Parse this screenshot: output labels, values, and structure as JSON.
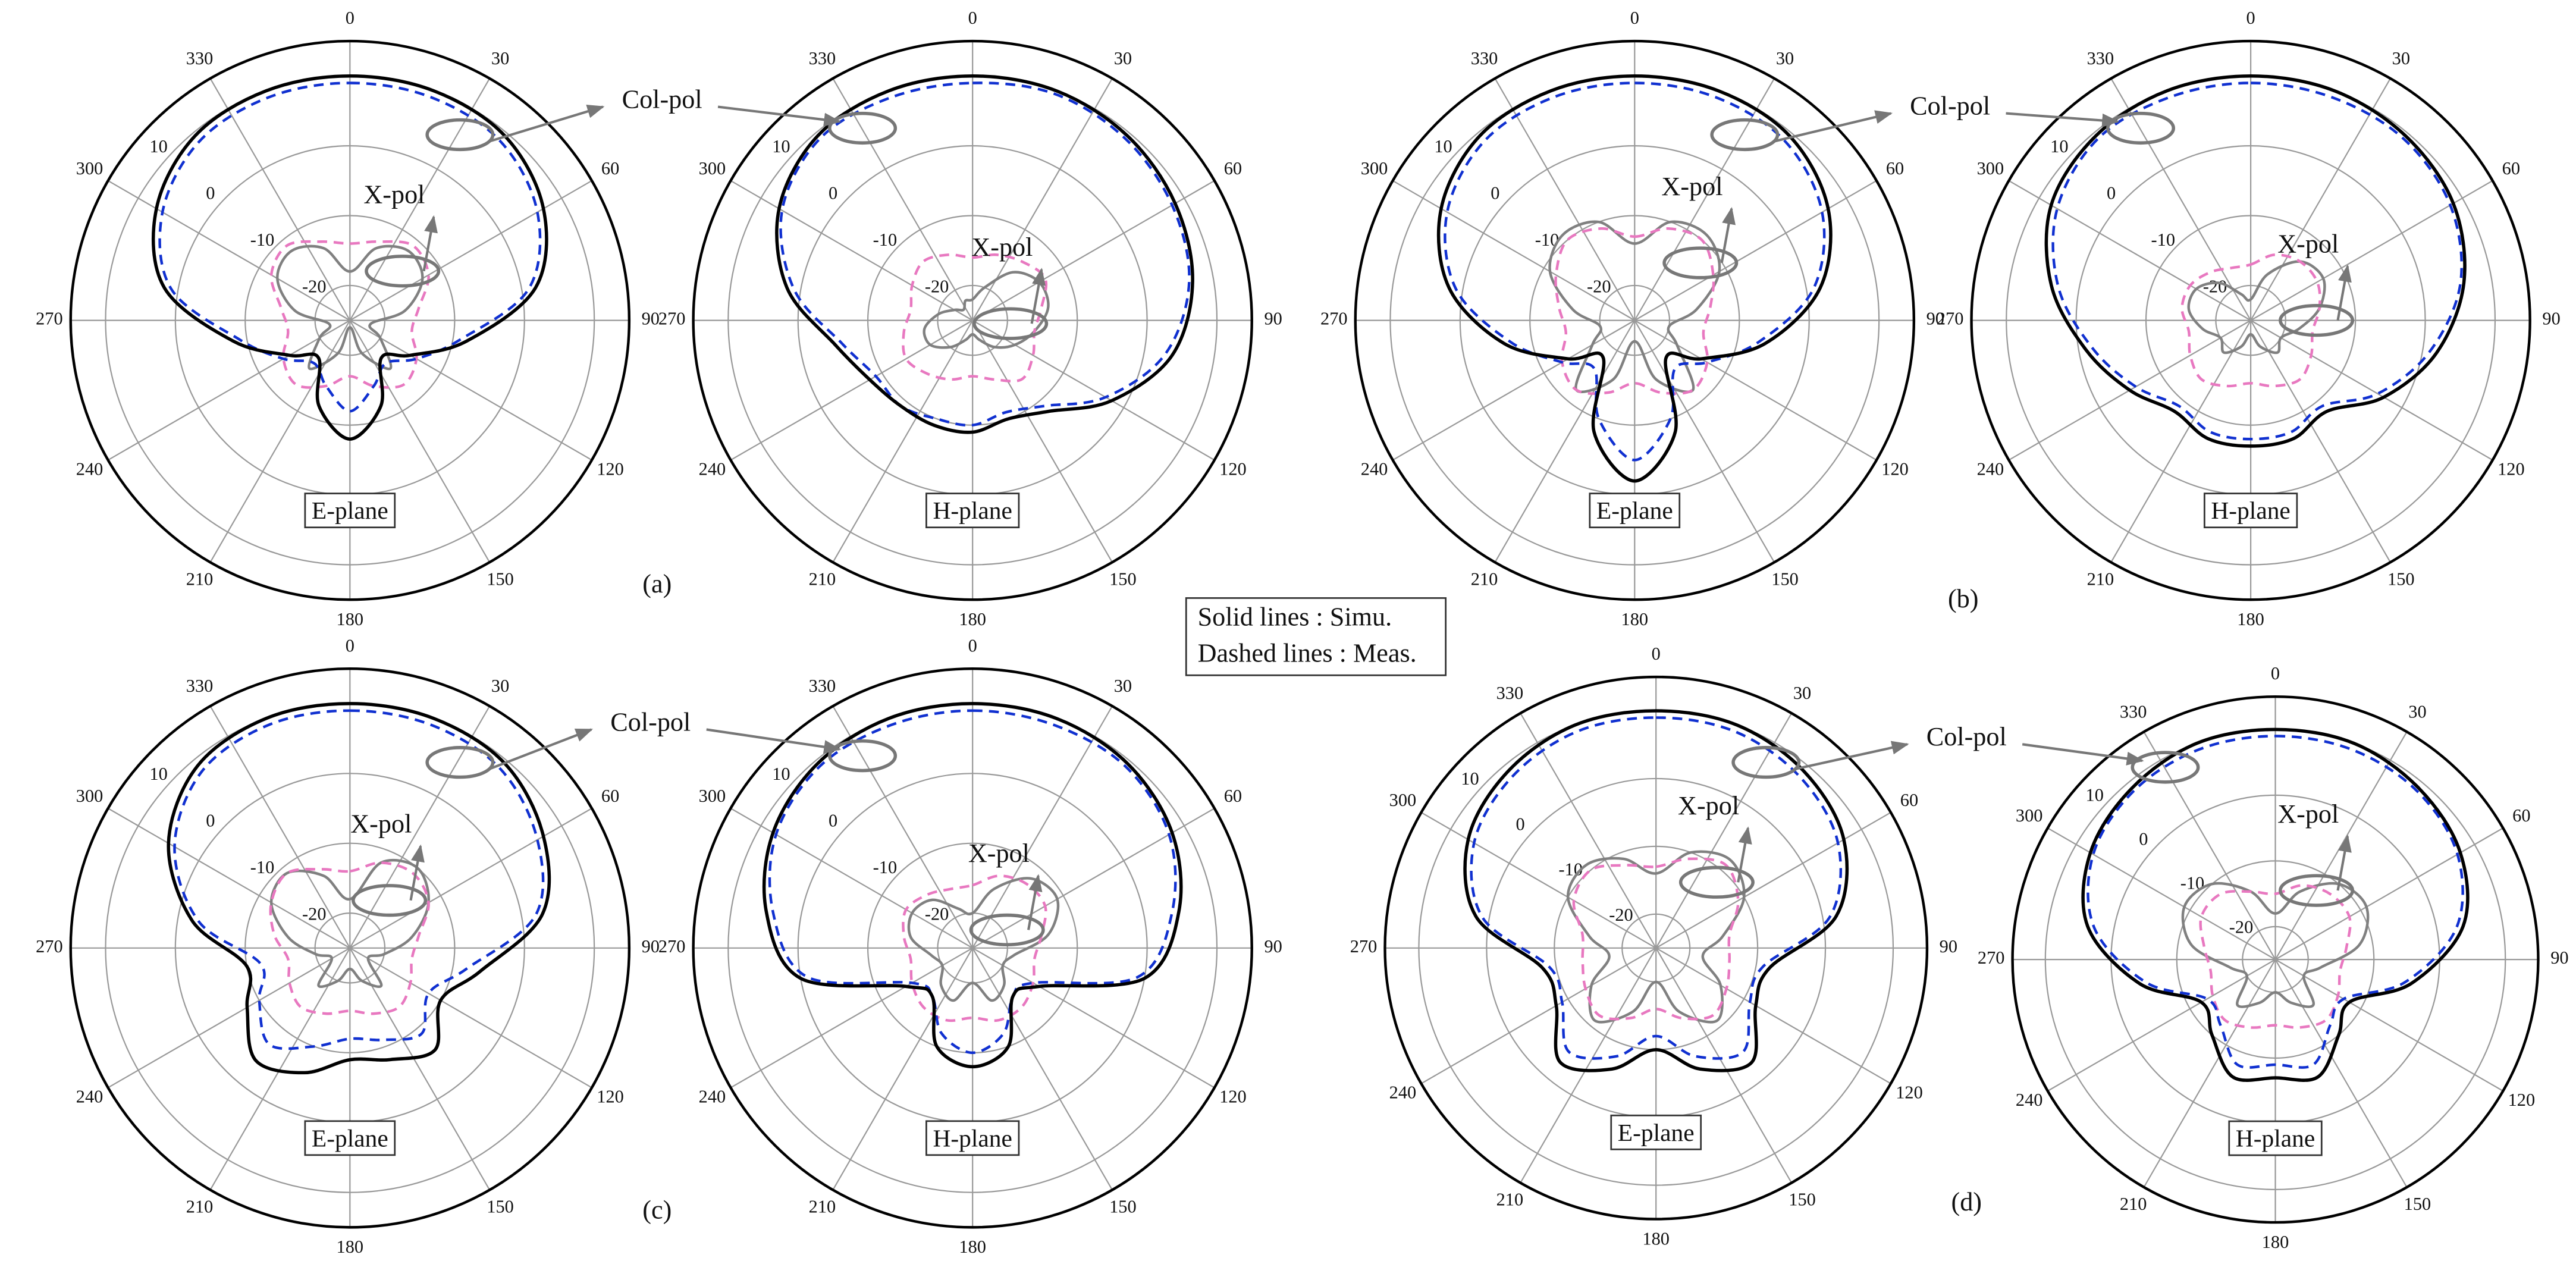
{
  "chart_data": [
    {
      "type": "polar",
      "plane": "E-plane",
      "annotation": "X-pol",
      "rlim": [
        -25,
        15
      ],
      "rticks": [
        -20,
        -10,
        0,
        10
      ],
      "thetaticks": [
        0,
        30,
        60,
        90,
        120,
        150,
        180,
        210,
        240,
        270,
        300,
        330
      ],
      "theta": [
        0,
        20,
        40,
        60,
        80,
        100,
        120,
        140,
        160,
        180,
        200,
        220,
        240,
        260,
        280,
        300,
        320,
        340
      ],
      "series": [
        {
          "color": "#000000",
          "dash": false,
          "values": [
            10,
            10,
            9.5,
            7,
            2,
            -8,
            -15,
            -18,
            -12,
            -8,
            -12,
            -18,
            -15,
            -8,
            2,
            7,
            9.5,
            10
          ]
        },
        {
          "color": "#1030d0",
          "dash": true,
          "values": [
            9,
            9,
            8.5,
            6,
            1,
            -9,
            -14,
            -17,
            -15,
            -12,
            -15,
            -17,
            -14,
            -9,
            1,
            6,
            8.5,
            9
          ]
        },
        {
          "color": "#808080",
          "dash": false,
          "values": [
            -18,
            -14,
            -12,
            -13,
            -17,
            -22,
            -20,
            -16,
            -20,
            -24,
            -20,
            -16,
            -20,
            -22,
            -17,
            -13,
            -12,
            -14
          ]
        },
        {
          "color": "#e878c0",
          "dash": true,
          "values": [
            -14,
            -13,
            -11,
            -12,
            -15,
            -16,
            -14,
            -13,
            -15,
            -17,
            -15,
            -13,
            -14,
            -16,
            -15,
            -12,
            -11,
            -13
          ]
        }
      ]
    },
    {
      "type": "polar",
      "plane": "H-plane",
      "annotation": "X-pol",
      "rlim": [
        -25,
        15
      ],
      "rticks": [
        -20,
        -10,
        0,
        10
      ],
      "thetaticks": [
        0,
        30,
        60,
        90,
        120,
        150,
        180,
        210,
        240,
        270,
        300,
        330
      ],
      "theta": [
        0,
        20,
        40,
        60,
        80,
        100,
        120,
        140,
        160,
        180,
        200,
        220,
        240,
        260,
        280,
        300,
        320,
        340
      ],
      "series": [
        {
          "color": "#000000",
          "dash": false,
          "values": [
            10,
            10,
            9.5,
            8.5,
            7,
            4,
            -2,
            -8,
            -10,
            -9,
            -9,
            -9,
            -8,
            -5,
            2,
            7,
            9.5,
            10
          ]
        },
        {
          "color": "#1030d0",
          "dash": true,
          "values": [
            9,
            9.5,
            9,
            8,
            6.5,
            3,
            -3,
            -9,
            -11,
            -10,
            -10,
            -9,
            -9,
            -6,
            1,
            6.5,
            9,
            9
          ]
        },
        {
          "color": "#808080",
          "dash": false,
          "values": [
            -22,
            -20,
            -16,
            -14,
            -14,
            -16,
            -18,
            -20,
            -22,
            -23,
            -22,
            -20,
            -18,
            -18,
            -20,
            -22,
            -23,
            -22
          ]
        },
        {
          "color": "#e878c0",
          "dash": true,
          "values": [
            -16,
            -15,
            -14,
            -13,
            -15,
            -16,
            -15,
            -14,
            -16,
            -17,
            -16,
            -15,
            -14,
            -15,
            -16,
            -15,
            -14,
            -15
          ]
        }
      ]
    },
    {
      "type": "polar",
      "plane": "E-plane",
      "annotation": "X-pol",
      "rlim": [
        -25,
        15
      ],
      "rticks": [
        -20,
        -10,
        0,
        10
      ],
      "thetaticks": [
        0,
        30,
        60,
        90,
        120,
        150,
        180,
        210,
        240,
        270,
        300,
        330
      ],
      "theta": [
        0,
        20,
        40,
        60,
        80,
        100,
        120,
        140,
        160,
        180,
        200,
        220,
        240,
        260,
        280,
        300,
        320,
        340
      ],
      "series": [
        {
          "color": "#000000",
          "dash": false,
          "values": [
            10,
            10,
            9.5,
            7,
            2,
            -6,
            -14,
            -18,
            -8,
            -2,
            -8,
            -18,
            -14,
            -6,
            2,
            7,
            9.5,
            10
          ]
        },
        {
          "color": "#1030d0",
          "dash": true,
          "values": [
            9,
            9,
            8.5,
            6,
            1,
            -7,
            -13,
            -16,
            -10,
            -5,
            -10,
            -16,
            -13,
            -7,
            1,
            6,
            8.5,
            9
          ]
        },
        {
          "color": "#808080",
          "dash": false,
          "values": [
            -14,
            -10,
            -9,
            -11,
            -16,
            -20,
            -18,
            -12,
            -16,
            -22,
            -16,
            -12,
            -18,
            -20,
            -16,
            -11,
            -9,
            -10
          ]
        },
        {
          "color": "#e878c0",
          "dash": true,
          "values": [
            -13,
            -11,
            -10,
            -12,
            -14,
            -15,
            -13,
            -12,
            -14,
            -16,
            -14,
            -12,
            -13,
            -15,
            -14,
            -12,
            -10,
            -11
          ]
        }
      ]
    },
    {
      "type": "polar",
      "plane": "H-plane",
      "annotation": "X-pol",
      "rlim": [
        -25,
        15
      ],
      "rticks": [
        -20,
        -10,
        0,
        10
      ],
      "thetaticks": [
        0,
        30,
        60,
        90,
        120,
        150,
        180,
        210,
        240,
        270,
        300,
        330
      ],
      "theta": [
        0,
        20,
        40,
        60,
        80,
        100,
        120,
        140,
        160,
        180,
        200,
        220,
        240,
        260,
        280,
        300,
        320,
        340
      ],
      "series": [
        {
          "color": "#000000",
          "dash": false,
          "values": [
            10,
            10,
            9.5,
            8.5,
            6,
            2,
            -3,
            -8,
            -7,
            -7,
            -7,
            -8,
            -5,
            -1,
            4,
            8,
            9.5,
            10
          ]
        },
        {
          "color": "#1030d0",
          "dash": true,
          "values": [
            9,
            9,
            9,
            8,
            5.5,
            1,
            -4,
            -9,
            -8,
            -8,
            -8,
            -9,
            -6,
            -2,
            3,
            7,
            9,
            9
          ]
        },
        {
          "color": "#808080",
          "dash": false,
          "values": [
            -22,
            -18,
            -14,
            -13,
            -15,
            -18,
            -20,
            -19,
            -21,
            -23,
            -21,
            -19,
            -20,
            -18,
            -16,
            -16,
            -18,
            -21
          ]
        },
        {
          "color": "#e878c0",
          "dash": true,
          "values": [
            -17,
            -15,
            -14,
            -14,
            -15,
            -16,
            -15,
            -14,
            -15,
            -16,
            -15,
            -14,
            -15,
            -16,
            -15,
            -15,
            -16,
            -17
          ]
        }
      ]
    },
    {
      "type": "polar",
      "plane": "E-plane",
      "annotation": "X-pol",
      "rlim": [
        -25,
        15
      ],
      "rticks": [
        -20,
        -10,
        0,
        10
      ],
      "thetaticks": [
        0,
        30,
        60,
        90,
        120,
        150,
        180,
        210,
        240,
        270,
        300,
        330
      ],
      "theta": [
        0,
        20,
        40,
        60,
        80,
        100,
        120,
        140,
        160,
        180,
        200,
        220,
        240,
        260,
        280,
        300,
        320,
        340
      ],
      "series": [
        {
          "color": "#000000",
          "dash": false,
          "values": [
            10,
            10,
            9.5,
            7,
            3,
            -6,
            -10,
            -6,
            -8,
            -9,
            -6,
            -4,
            -8,
            -10,
            -2,
            5,
            9,
            10
          ]
        },
        {
          "color": "#1030d0",
          "dash": true,
          "values": [
            9,
            9,
            8.5,
            6,
            2,
            -8,
            -12,
            -9,
            -11,
            -12,
            -10,
            -7,
            -10,
            -12,
            -3,
            4,
            8,
            9
          ]
        },
        {
          "color": "#808080",
          "dash": false,
          "values": [
            -18,
            -12,
            -10,
            -12,
            -16,
            -20,
            -22,
            -18,
            -20,
            -22,
            -20,
            -18,
            -22,
            -20,
            -16,
            -12,
            -11,
            -14
          ]
        },
        {
          "color": "#e878c0",
          "dash": true,
          "values": [
            -14,
            -12,
            -11,
            -12,
            -15,
            -16,
            -15,
            -14,
            -15,
            -16,
            -15,
            -14,
            -15,
            -16,
            -14,
            -12,
            -11,
            -13
          ]
        }
      ]
    },
    {
      "type": "polar",
      "plane": "H-plane",
      "annotation": "X-pol",
      "rlim": [
        -25,
        15
      ],
      "rticks": [
        -20,
        -10,
        0,
        10
      ],
      "thetaticks": [
        0,
        30,
        60,
        90,
        120,
        150,
        180,
        210,
        240,
        270,
        300,
        330
      ],
      "theta": [
        0,
        20,
        40,
        60,
        80,
        100,
        120,
        140,
        160,
        180,
        200,
        220,
        240,
        260,
        280,
        300,
        320,
        340
      ],
      "series": [
        {
          "color": "#000000",
          "dash": false,
          "values": [
            10,
            10,
            9.5,
            8,
            5,
            0,
            -14,
            -16,
            -10,
            -8,
            -10,
            -16,
            -14,
            0,
            5,
            8,
            9.5,
            10
          ]
        },
        {
          "color": "#1030d0",
          "dash": true,
          "values": [
            9,
            9,
            9,
            7.5,
            4,
            -1,
            -15,
            -16,
            -12,
            -10,
            -12,
            -16,
            -15,
            -1,
            4,
            7.5,
            9,
            9
          ]
        },
        {
          "color": "#808080",
          "dash": false,
          "values": [
            -20,
            -16,
            -12,
            -11,
            -14,
            -19,
            -20,
            -18,
            -17,
            -20,
            -17,
            -18,
            -20,
            -19,
            -16,
            -15,
            -16,
            -19
          ]
        },
        {
          "color": "#e878c0",
          "dash": true,
          "values": [
            -16,
            -14,
            -13,
            -13,
            -15,
            -16,
            -15,
            -14,
            -14,
            -15,
            -14,
            -14,
            -15,
            -16,
            -15,
            -14,
            -15,
            -16
          ]
        }
      ]
    },
    {
      "type": "polar",
      "plane": "E-plane",
      "annotation": "X-pol",
      "rlim": [
        -25,
        15
      ],
      "rticks": [
        -20,
        -10,
        0,
        10
      ],
      "thetaticks": [
        0,
        30,
        60,
        90,
        120,
        150,
        180,
        210,
        240,
        270,
        300,
        330
      ],
      "theta": [
        0,
        20,
        40,
        60,
        80,
        100,
        120,
        140,
        160,
        180,
        200,
        220,
        240,
        260,
        280,
        300,
        320,
        340
      ],
      "series": [
        {
          "color": "#000000",
          "dash": false,
          "values": [
            10,
            10,
            9,
            7,
            2,
            -8,
            -8,
            -3,
            -6,
            -10,
            -6,
            -3,
            -8,
            -8,
            2,
            7,
            9,
            10
          ]
        },
        {
          "color": "#1030d0",
          "dash": true,
          "values": [
            9,
            9,
            8,
            6,
            1,
            -9,
            -9,
            -5,
            -8,
            -12,
            -8,
            -5,
            -9,
            -9,
            1,
            6,
            8,
            9
          ]
        },
        {
          "color": "#808080",
          "dash": false,
          "values": [
            -14,
            -10,
            -8,
            -10,
            -15,
            -18,
            -14,
            -11,
            -15,
            -20,
            -15,
            -11,
            -14,
            -18,
            -15,
            -10,
            -9,
            -11
          ]
        },
        {
          "color": "#e878c0",
          "dash": true,
          "values": [
            -13,
            -11,
            -9,
            -11,
            -14,
            -14,
            -13,
            -12,
            -14,
            -16,
            -14,
            -12,
            -13,
            -14,
            -14,
            -11,
            -10,
            -12
          ]
        }
      ]
    },
    {
      "type": "polar",
      "plane": "H-plane",
      "annotation": "X-pol",
      "rlim": [
        -25,
        15
      ],
      "rticks": [
        -20,
        -10,
        0,
        10
      ],
      "thetaticks": [
        0,
        30,
        60,
        90,
        120,
        150,
        180,
        210,
        240,
        270,
        300,
        330
      ],
      "theta": [
        0,
        20,
        40,
        60,
        80,
        100,
        120,
        140,
        160,
        180,
        200,
        220,
        240,
        260,
        280,
        300,
        320,
        340
      ],
      "series": [
        {
          "color": "#000000",
          "dash": false,
          "values": [
            10,
            10,
            9,
            7.5,
            4,
            -4,
            -12,
            -10,
            -6,
            -7,
            -6,
            -10,
            -12,
            -4,
            4,
            7.5,
            9,
            10
          ]
        },
        {
          "color": "#1030d0",
          "dash": true,
          "values": [
            9,
            9,
            8.5,
            7,
            3,
            -5,
            -13,
            -12,
            -8,
            -9,
            -8,
            -12,
            -13,
            -5,
            3,
            7,
            8.5,
            9
          ]
        },
        {
          "color": "#808080",
          "dash": false,
          "values": [
            -18,
            -14,
            -10,
            -9,
            -12,
            -18,
            -20,
            -16,
            -18,
            -20,
            -18,
            -16,
            -20,
            -18,
            -12,
            -9,
            -10,
            -14
          ]
        },
        {
          "color": "#e878c0",
          "dash": true,
          "values": [
            -15,
            -13,
            -12,
            -12,
            -14,
            -15,
            -14,
            -13,
            -14,
            -15,
            -14,
            -13,
            -14,
            -15,
            -14,
            -12,
            -12,
            -14
          ]
        }
      ]
    }
  ],
  "panels": [
    {
      "label": "(a)",
      "col_pol": "Col-pol"
    },
    {
      "label": "(b)",
      "col_pol": "Col-pol"
    },
    {
      "label": "(c)",
      "col_pol": "Col-pol"
    },
    {
      "label": "(d)",
      "col_pol": "Col-pol"
    }
  ],
  "legend_note": [
    "Solid lines : Simu.",
    "Dashed lines : Meas."
  ]
}
